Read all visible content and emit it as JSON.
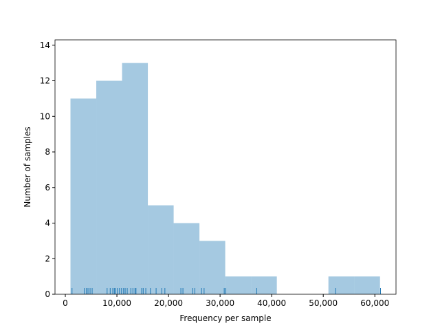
{
  "chart_data": {
    "type": "histogram",
    "x_label": "Frequency per sample",
    "y_label": "Number of samples",
    "bins": [
      1000,
      6000,
      11000,
      16000,
      21000,
      26000,
      31000,
      36000,
      41000,
      46000,
      51000,
      56000,
      61000
    ],
    "counts": [
      11,
      12,
      13,
      5,
      4,
      3,
      1,
      1,
      0,
      0,
      1,
      1
    ],
    "color": "#1f77b4",
    "rug": [
      1300,
      3700,
      4100,
      4400,
      4800,
      5200,
      8100,
      8700,
      9200,
      9500,
      9700,
      10100,
      10500,
      10900,
      11300,
      11600,
      12000,
      12700,
      13100,
      13500,
      13700,
      14800,
      15100,
      15600,
      16500,
      17600,
      18700,
      19300,
      22400,
      22800,
      24700,
      25100,
      26400,
      26900,
      30800,
      31100,
      37100,
      52400,
      61100
    ],
    "xlim": [
      -2000,
      64100
    ],
    "ylim": [
      0,
      14.3
    ],
    "xticks": [
      0,
      {
        "value": 10000,
        "label": "10,000"
      },
      {
        "value": 20000,
        "label": "20,000"
      },
      {
        "value": 30000,
        "label": "30,000"
      },
      {
        "value": 40000,
        "label": "40,000"
      },
      {
        "value": 50000,
        "label": "50,000"
      },
      {
        "value": 60000,
        "label": "60,000"
      }
    ],
    "yticks": [
      0,
      2,
      4,
      6,
      8,
      10,
      12,
      14
    ],
    "grid": false
  }
}
